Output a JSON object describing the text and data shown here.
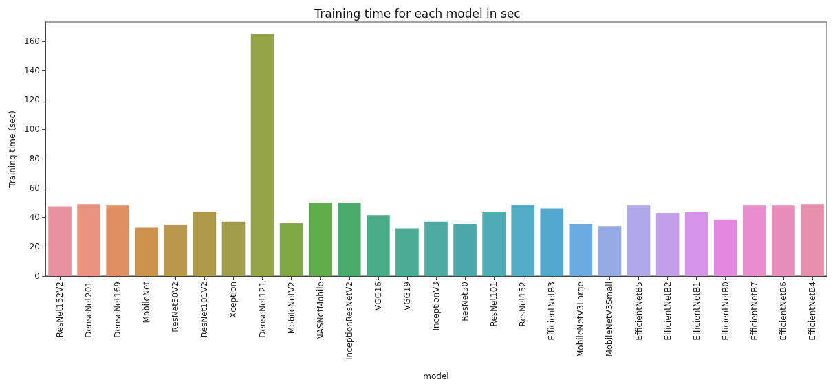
{
  "chart_data": {
    "type": "bar",
    "title": "Training time for each model in sec",
    "xlabel": "model",
    "ylabel": "Training time (sec)",
    "categories": [
      "ResNet152V2",
      "DenseNet201",
      "DenseNet169",
      "MobileNet",
      "ResNet50V2",
      "ResNet101V2",
      "Xception",
      "DenseNet121",
      "MobileNetV2",
      "NASNetMobile",
      "InceptionResNetV2",
      "VGG16",
      "VGG19",
      "InceptionV3",
      "ResNet50",
      "ResNet101",
      "ResNet152",
      "EfficientNetB3",
      "MobileNetV3Large",
      "MobileNetV3Small",
      "EfficientNetB5",
      "EfficientNetB2",
      "EfficientNetB1",
      "EfficientNetB0",
      "EfficientNetB7",
      "EfficientNetB6",
      "EfficientNetB4"
    ],
    "values": [
      47.5,
      49,
      48,
      33,
      35,
      44,
      37,
      165,
      36,
      50,
      50,
      41.5,
      32.5,
      37,
      35.5,
      43.5,
      48.5,
      46,
      35.5,
      34,
      48,
      43,
      43.5,
      38.5,
      48,
      48,
      49
    ],
    "colors": [
      "#e8929f",
      "#e8927f",
      "#e08f62",
      "#cc924b",
      "#bb974b",
      "#ae9a49",
      "#a19c49",
      "#94a345",
      "#80a844",
      "#5fae4a",
      "#4bab6c",
      "#4aad88",
      "#4bad96",
      "#4caba3",
      "#4ba9ab",
      "#4eacb7",
      "#52acc6",
      "#52a8cf",
      "#6cabe0",
      "#96abe6",
      "#b0a6ea",
      "#c39feb",
      "#d594e7",
      "#e588e1",
      "#e88ecd",
      "#e88ebc",
      "#e78fad"
    ],
    "ylim": [
      0,
      173
    ],
    "yticks": [
      0,
      20,
      40,
      60,
      80,
      100,
      120,
      140,
      160
    ],
    "grid": false
  }
}
